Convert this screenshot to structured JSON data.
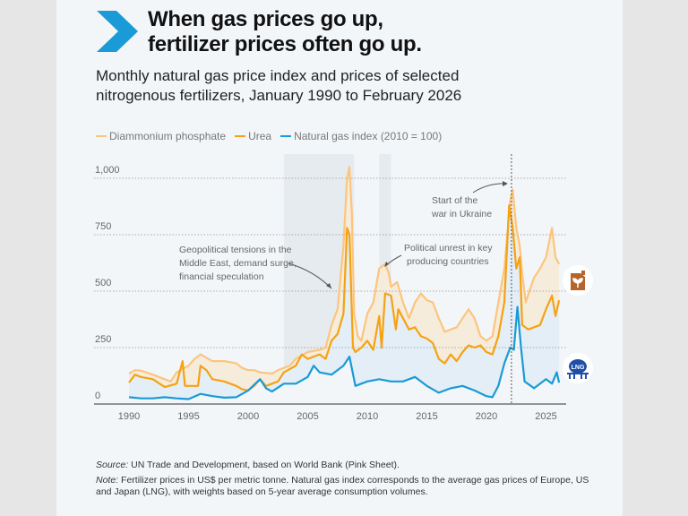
{
  "title_lines": [
    "When gas prices go up,",
    "fertilizer prices often go up."
  ],
  "subtitle_lines": [
    "Monthly natural gas price index and prices of selected",
    "nitrogenous fertilizers, January 1990 to February 2026"
  ],
  "colors": {
    "dap": "#fcc57e",
    "urea": "#f5a214",
    "gas": "#1a9ad6",
    "chevron": "#1a9ad6",
    "dap_fill": "#f6ecdc",
    "urea_fill": "#e3eef7",
    "shade": "#e6ebf0"
  },
  "legend": [
    {
      "label": "Diammonium phosphate",
      "color": "#fcc57e"
    },
    {
      "label": "Urea",
      "color": "#f5a214"
    },
    {
      "label": "Natural gas index (2010 = 100)",
      "color": "#1a9ad6"
    }
  ],
  "icons": {
    "fertilizer": "fertilizer-jerrycan-icon",
    "gas": "lng-tank-icon",
    "gas_label": "LNG"
  },
  "chart_data": {
    "type": "line",
    "xlim": [
      1990,
      2026.1
    ],
    "ylim": [
      0,
      1050
    ],
    "x_ticks": [
      1990,
      1995,
      2000,
      2005,
      2010,
      2015,
      2020,
      2025
    ],
    "y_ticks": [
      0,
      250,
      500,
      750,
      1000
    ],
    "y_tick_labels": [
      "0",
      "250",
      "500",
      "750",
      "1,000"
    ],
    "grid": "horizontal dotted",
    "legend_position": "top-left",
    "shaded_periods": [
      [
        2003,
        2008.9
      ],
      [
        2011,
        2012
      ]
    ],
    "marker_line": 2022.1,
    "annotations": [
      {
        "lines": [
          "Geopolitical tensions in the",
          "Middle East, demand surge,",
          "financial speculation"
        ]
      },
      {
        "lines": [
          "Political unrest in key",
          "producing countries"
        ]
      },
      {
        "lines": [
          "Start of the",
          "war in Ukraine"
        ]
      }
    ],
    "series": [
      {
        "name": "Diammonium phophate",
        "points": [
          [
            1990,
            135
          ],
          [
            1990.5,
            150
          ],
          [
            1991,
            148
          ],
          [
            1992,
            130
          ],
          [
            1993,
            110
          ],
          [
            1993.5,
            100
          ],
          [
            1994,
            140
          ],
          [
            1995,
            170
          ],
          [
            1995.5,
            200
          ],
          [
            1996,
            220
          ],
          [
            1996.5,
            205
          ],
          [
            1997,
            190
          ],
          [
            1998,
            190
          ],
          [
            1999,
            180
          ],
          [
            1999.5,
            160
          ],
          [
            2000,
            150
          ],
          [
            2000.5,
            150
          ],
          [
            2001,
            140
          ],
          [
            2002,
            135
          ],
          [
            2002.5,
            150
          ],
          [
            2003,
            160
          ],
          [
            2003.5,
            170
          ],
          [
            2004,
            200
          ],
          [
            2005,
            230
          ],
          [
            2006,
            240
          ],
          [
            2006.5,
            250
          ],
          [
            2007,
            350
          ],
          [
            2007.5,
            420
          ],
          [
            2008,
            700
          ],
          [
            2008.3,
            1000
          ],
          [
            2008.5,
            1050
          ],
          [
            2008.7,
            850
          ],
          [
            2008.9,
            400
          ],
          [
            2009.2,
            300
          ],
          [
            2009.5,
            280
          ],
          [
            2010,
            400
          ],
          [
            2010.5,
            450
          ],
          [
            2011,
            600
          ],
          [
            2011.5,
            620
          ],
          [
            2011.8,
            580
          ],
          [
            2012,
            520
          ],
          [
            2012.5,
            540
          ],
          [
            2013,
            450
          ],
          [
            2013.5,
            380
          ],
          [
            2014,
            450
          ],
          [
            2014.5,
            490
          ],
          [
            2015,
            460
          ],
          [
            2015.5,
            450
          ],
          [
            2016,
            380
          ],
          [
            2016.5,
            320
          ],
          [
            2017,
            330
          ],
          [
            2017.5,
            340
          ],
          [
            2018,
            380
          ],
          [
            2018.5,
            420
          ],
          [
            2019,
            380
          ],
          [
            2019.5,
            300
          ],
          [
            2020,
            280
          ],
          [
            2020.5,
            300
          ],
          [
            2021,
            450
          ],
          [
            2021.5,
            600
          ],
          [
            2022,
            900
          ],
          [
            2022.2,
            950
          ],
          [
            2022.5,
            780
          ],
          [
            2022.8,
            700
          ],
          [
            2023,
            580
          ],
          [
            2023.3,
            450
          ],
          [
            2023.6,
            500
          ],
          [
            2024,
            560
          ],
          [
            2024.5,
            600
          ],
          [
            2025,
            650
          ],
          [
            2025.5,
            780
          ],
          [
            2025.8,
            650
          ],
          [
            2026.1,
            620
          ]
        ]
      },
      {
        "name": "Urea",
        "points": [
          [
            1990,
            95
          ],
          [
            1990.5,
            130
          ],
          [
            1991,
            120
          ],
          [
            1992,
            110
          ],
          [
            1993,
            75
          ],
          [
            1994,
            90
          ],
          [
            1994.5,
            190
          ],
          [
            1994.7,
            80
          ],
          [
            1995.8,
            80
          ],
          [
            1996,
            170
          ],
          [
            1996.5,
            150
          ],
          [
            1997,
            110
          ],
          [
            1998,
            100
          ],
          [
            1999,
            80
          ],
          [
            1999.5,
            65
          ],
          [
            2000,
            60
          ],
          [
            2000.5,
            80
          ],
          [
            2001,
            110
          ],
          [
            2001.5,
            80
          ],
          [
            2002,
            90
          ],
          [
            2002.5,
            100
          ],
          [
            2003,
            140
          ],
          [
            2004,
            170
          ],
          [
            2004.5,
            220
          ],
          [
            2005,
            200
          ],
          [
            2006,
            220
          ],
          [
            2006.5,
            200
          ],
          [
            2007,
            280
          ],
          [
            2007.5,
            310
          ],
          [
            2008,
            400
          ],
          [
            2008.3,
            780
          ],
          [
            2008.5,
            750
          ],
          [
            2008.8,
            250
          ],
          [
            2009,
            230
          ],
          [
            2009.5,
            250
          ],
          [
            2010,
            280
          ],
          [
            2010.5,
            240
          ],
          [
            2011,
            390
          ],
          [
            2011.2,
            250
          ],
          [
            2011.5,
            490
          ],
          [
            2012,
            480
          ],
          [
            2012.4,
            330
          ],
          [
            2012.6,
            420
          ],
          [
            2013,
            380
          ],
          [
            2013.5,
            330
          ],
          [
            2014,
            340
          ],
          [
            2014.5,
            300
          ],
          [
            2015,
            290
          ],
          [
            2015.5,
            270
          ],
          [
            2016,
            200
          ],
          [
            2016.5,
            180
          ],
          [
            2017,
            220
          ],
          [
            2017.5,
            190
          ],
          [
            2018,
            230
          ],
          [
            2018.5,
            260
          ],
          [
            2019,
            250
          ],
          [
            2019.5,
            260
          ],
          [
            2020,
            230
          ],
          [
            2020.5,
            220
          ],
          [
            2021,
            300
          ],
          [
            2021.5,
            450
          ],
          [
            2021.9,
            880
          ],
          [
            2022.2,
            780
          ],
          [
            2022.5,
            600
          ],
          [
            2022.8,
            650
          ],
          [
            2023,
            350
          ],
          [
            2023.5,
            330
          ],
          [
            2024,
            340
          ],
          [
            2024.5,
            350
          ],
          [
            2025,
            420
          ],
          [
            2025.5,
            480
          ],
          [
            2025.8,
            390
          ],
          [
            2026.1,
            460
          ]
        ]
      },
      {
        "name": "Natural gas index (2010 = 100)",
        "points": [
          [
            1990,
            30
          ],
          [
            1991,
            25
          ],
          [
            1992,
            25
          ],
          [
            1993,
            30
          ],
          [
            1994,
            25
          ],
          [
            1995,
            22
          ],
          [
            1996,
            45
          ],
          [
            1997,
            35
          ],
          [
            1998,
            28
          ],
          [
            1999,
            30
          ],
          [
            2000,
            60
          ],
          [
            2001,
            110
          ],
          [
            2001.5,
            70
          ],
          [
            2002,
            55
          ],
          [
            2003,
            90
          ],
          [
            2004,
            90
          ],
          [
            2005,
            120
          ],
          [
            2005.5,
            170
          ],
          [
            2006,
            140
          ],
          [
            2007,
            130
          ],
          [
            2008,
            170
          ],
          [
            2008.5,
            210
          ],
          [
            2009,
            80
          ],
          [
            2010,
            100
          ],
          [
            2011,
            110
          ],
          [
            2012,
            100
          ],
          [
            2013,
            100
          ],
          [
            2014,
            120
          ],
          [
            2015,
            80
          ],
          [
            2016,
            50
          ],
          [
            2017,
            70
          ],
          [
            2018,
            80
          ],
          [
            2019,
            60
          ],
          [
            2020,
            35
          ],
          [
            2020.5,
            30
          ],
          [
            2021,
            80
          ],
          [
            2021.5,
            180
          ],
          [
            2022,
            250
          ],
          [
            2022.3,
            240
          ],
          [
            2022.6,
            430
          ],
          [
            2022.9,
            250
          ],
          [
            2023.2,
            100
          ],
          [
            2024,
            70
          ],
          [
            2024.5,
            90
          ],
          [
            2025,
            110
          ],
          [
            2025.5,
            90
          ],
          [
            2025.9,
            140
          ],
          [
            2026.1,
            95
          ]
        ]
      }
    ]
  },
  "source": {
    "label": "Source:",
    "text": " UN Trade and Development, based on World Bank (Pink Sheet)."
  },
  "note": {
    "label": "Note:",
    "text": " Fertilizer prices in US$ per metric tonne. Natural gas index corresponds to the average gas prices of Europe, US and Japan (LNG), with weights based on 5-year average consumption volumes."
  }
}
